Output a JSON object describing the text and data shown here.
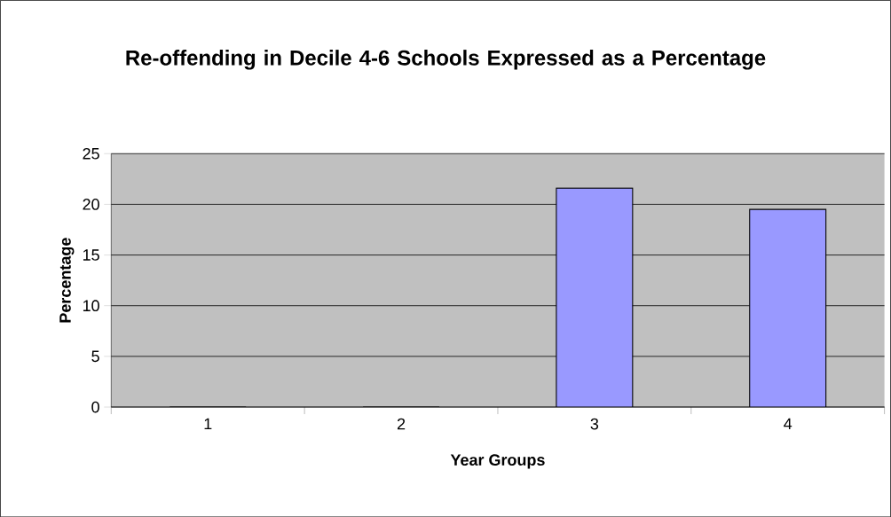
{
  "chart_data": {
    "type": "bar",
    "title": "Re-offending in Decile 4-6 Schools Expressed as a Percentage",
    "xlabel": "Year Groups",
    "ylabel": "Percentage",
    "categories": [
      "1",
      "2",
      "3",
      "4"
    ],
    "values": [
      0,
      0,
      21.6,
      19.5
    ],
    "color": "#9999ff",
    "ylim": [
      0,
      25
    ],
    "yticks": [
      0,
      5,
      10,
      15,
      20,
      25
    ],
    "grid": "y"
  }
}
